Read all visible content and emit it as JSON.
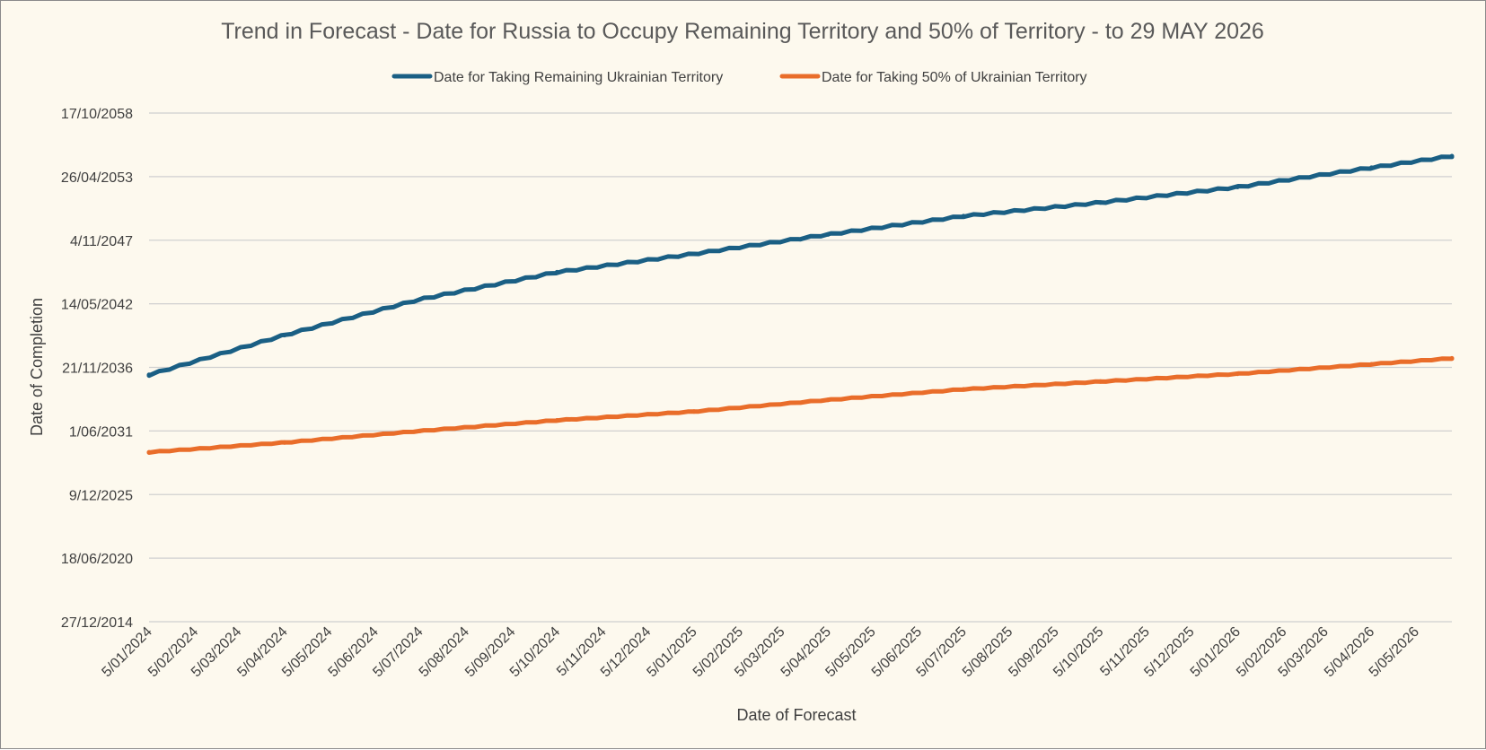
{
  "chart_data": {
    "type": "line",
    "title": "Trend in Forecast - Date for Russia to Occupy Remaining Territory and 50% of Territory - to 29 MAY 2026",
    "xlabel": "Date of Forecast",
    "ylabel": "Date of Completion",
    "x_start": "2024-01-05",
    "x_end": "2026-05-29",
    "x_ticks": [
      "5/01/2024",
      "5/02/2024",
      "5/03/2024",
      "5/04/2024",
      "5/05/2024",
      "5/06/2024",
      "5/07/2024",
      "5/08/2024",
      "5/09/2024",
      "5/10/2024",
      "5/11/2024",
      "5/12/2024",
      "5/01/2025",
      "5/02/2025",
      "5/03/2025",
      "5/04/2025",
      "5/05/2025",
      "5/06/2025",
      "5/07/2025",
      "5/08/2025",
      "5/09/2025",
      "5/10/2025",
      "5/11/2025",
      "5/12/2025",
      "5/01/2026",
      "5/02/2026",
      "5/03/2026",
      "5/04/2026",
      "5/05/2026"
    ],
    "y_ticks": [
      "27/12/2014",
      "18/06/2020",
      "9/12/2025",
      "1/06/2031",
      "21/11/2036",
      "14/05/2042",
      "4/11/2047",
      "26/04/2053",
      "17/10/2058"
    ],
    "ylim": [
      "2014-12-27",
      "2058-10-17"
    ],
    "grid": true,
    "legend_position": "top",
    "series": [
      {
        "name": "Date for Taking Remaining Ukrainian Territory",
        "color": "#1a5f84",
        "x": [
          "2024-01-05",
          "2024-04-05",
          "2024-07-05",
          "2024-10-05",
          "2025-01-05",
          "2025-04-05",
          "2025-07-05",
          "2025-10-05",
          "2026-01-05",
          "2026-04-05",
          "2026-05-29"
        ],
        "y": [
          "2036-04-01",
          "2039-09-01",
          "2042-10-01",
          "2045-02-01",
          "2046-09-01",
          "2048-05-01",
          "2049-12-01",
          "2051-02-01",
          "2052-06-01",
          "2054-02-01",
          "2055-02-01"
        ]
      },
      {
        "name": "Date for Taking  50% of Ukrainian Territory",
        "color": "#e96d2a",
        "x": [
          "2024-01-05",
          "2024-04-05",
          "2024-07-05",
          "2024-10-05",
          "2025-01-05",
          "2025-04-05",
          "2025-07-05",
          "2025-10-05",
          "2026-01-05",
          "2026-04-05",
          "2026-05-29"
        ],
        "y": [
          "2029-08-01",
          "2030-06-01",
          "2031-06-01",
          "2032-05-01",
          "2033-02-01",
          "2034-02-01",
          "2035-01-01",
          "2035-09-01",
          "2036-05-01",
          "2037-03-01",
          "2037-09-01"
        ]
      }
    ]
  }
}
